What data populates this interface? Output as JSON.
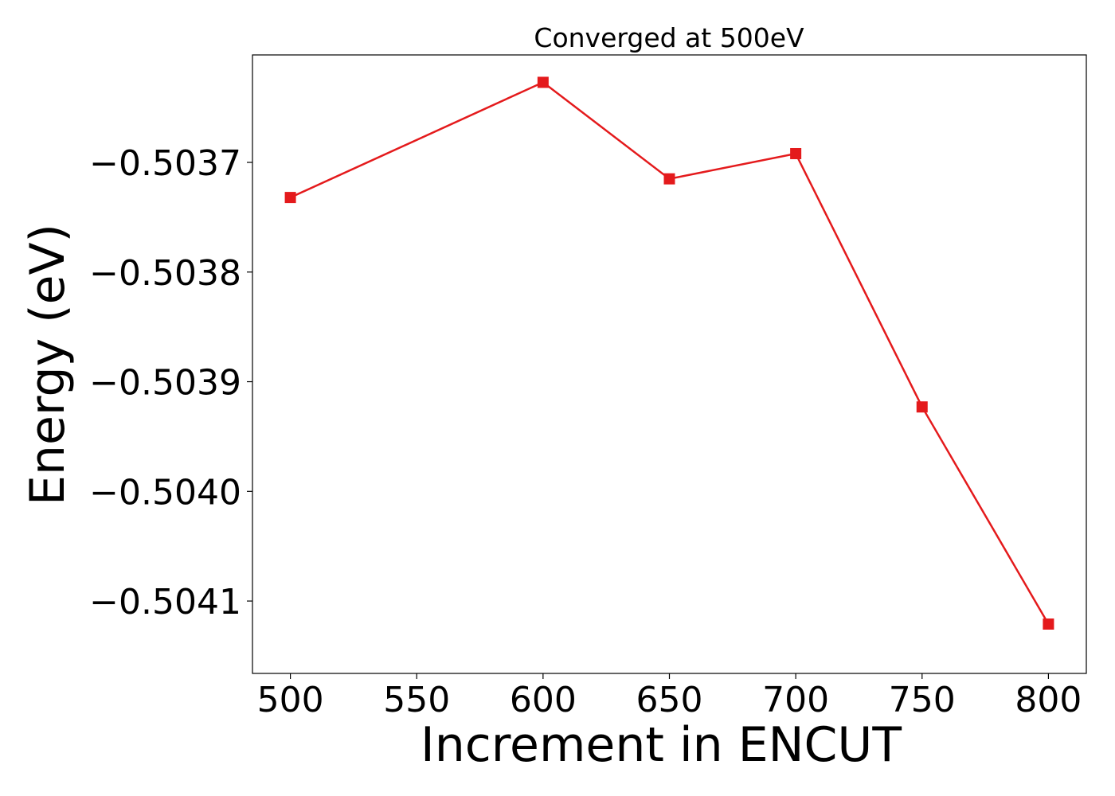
{
  "chart_data": {
    "type": "line",
    "title": "Converged at 500eV",
    "xlabel": "Increment in ENCUT",
    "ylabel": "Energy (eV)",
    "x": [
      500,
      600,
      650,
      700,
      750,
      800
    ],
    "series": [
      {
        "values": [
          -0.503732,
          -0.503627,
          -0.503715,
          -0.503692,
          -0.503923,
          -0.504121
        ],
        "color": "#e41a1c",
        "marker": "square"
      }
    ],
    "xticks": [
      500,
      550,
      600,
      650,
      700,
      750,
      800
    ],
    "xtick_labels": [
      "500",
      "550",
      "600",
      "650",
      "700",
      "750",
      "800"
    ],
    "yticks": [
      -0.5037,
      -0.5038,
      -0.5039,
      -0.504,
      -0.5041
    ],
    "ytick_labels": [
      "−0.5037",
      "−0.5038",
      "−0.5039",
      "−0.5040",
      "−0.5041"
    ],
    "xlim": [
      485,
      815
    ],
    "ylim": [
      -0.504166,
      -0.503602
    ],
    "grid": false,
    "legend": "none"
  }
}
